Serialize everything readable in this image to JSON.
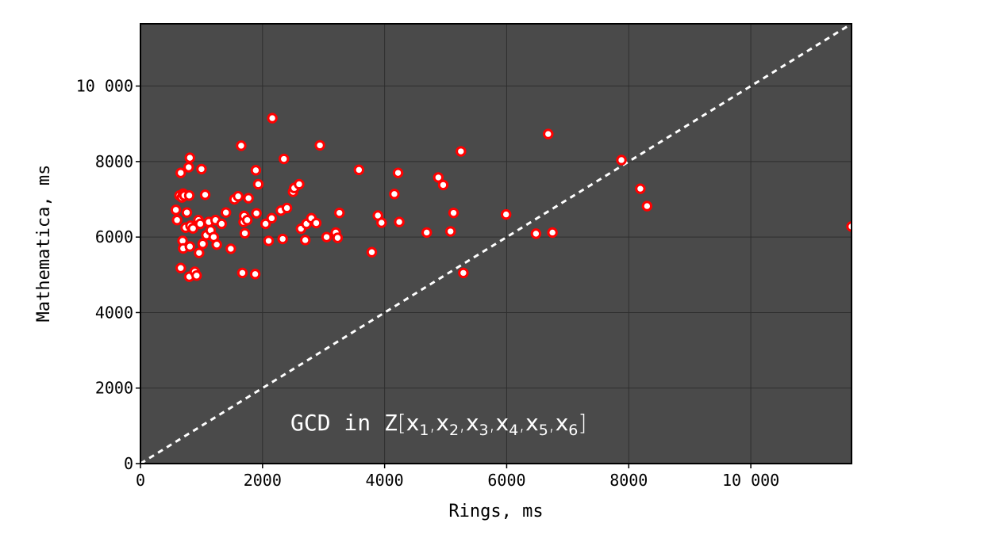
{
  "chart_data": {
    "type": "scatter",
    "xlabel": "Rings, ms",
    "ylabel": "Mathematica, ms",
    "annotation": {
      "prefix": "GCD in Z",
      "open": "[",
      "close": "]",
      "variables": [
        {
          "base": "x",
          "sub": "1"
        },
        {
          "base": "x",
          "sub": "2"
        },
        {
          "base": "x",
          "sub": "3"
        },
        {
          "base": "x",
          "sub": "4"
        },
        {
          "base": "x",
          "sub": "5"
        },
        {
          "base": "x",
          "sub": "6"
        }
      ],
      "separator": ","
    },
    "xlim": [
      0,
      11650
    ],
    "ylim": [
      0,
      11650
    ],
    "xticks": [
      {
        "value": 0,
        "label": "0"
      },
      {
        "value": 2000,
        "label": "2000"
      },
      {
        "value": 4000,
        "label": "4000"
      },
      {
        "value": 6000,
        "label": "6000"
      },
      {
        "value": 8000,
        "label": "8000"
      },
      {
        "value": 10000,
        "label": "10 000"
      }
    ],
    "yticks": [
      {
        "value": 0,
        "label": "0"
      },
      {
        "value": 2000,
        "label": "2000"
      },
      {
        "value": 4000,
        "label": "4000"
      },
      {
        "value": 6000,
        "label": "6000"
      },
      {
        "value": 8000,
        "label": "8000"
      },
      {
        "value": 10000,
        "label": "10 000"
      }
    ],
    "grid": true,
    "reference_line": "y = x",
    "colors": {
      "plot_background": "#4a4a4a",
      "grid": "#2e2e2e",
      "marker_edge": "#ff0000",
      "marker_face": "#ffffff",
      "reference_line": "#ffffff"
    },
    "points": [
      [
        580,
        6720
      ],
      [
        600,
        6450
      ],
      [
        640,
        7100
      ],
      [
        660,
        7700
      ],
      [
        680,
        7050
      ],
      [
        700,
        7150
      ],
      [
        720,
        7100
      ],
      [
        690,
        5900
      ],
      [
        700,
        5700
      ],
      [
        660,
        5180
      ],
      [
        740,
        6250
      ],
      [
        760,
        6650
      ],
      [
        790,
        7850
      ],
      [
        810,
        8100
      ],
      [
        800,
        7100
      ],
      [
        820,
        6300
      ],
      [
        810,
        5750
      ],
      [
        800,
        4950
      ],
      [
        860,
        6230
      ],
      [
        890,
        5080
      ],
      [
        920,
        4980
      ],
      [
        950,
        6450
      ],
      [
        960,
        5580
      ],
      [
        980,
        6350
      ],
      [
        1000,
        7800
      ],
      [
        1020,
        5820
      ],
      [
        1060,
        7120
      ],
      [
        1080,
        6050
      ],
      [
        1120,
        6400
      ],
      [
        1150,
        6180
      ],
      [
        1200,
        6000
      ],
      [
        1230,
        6450
      ],
      [
        1250,
        5800
      ],
      [
        1330,
        6350
      ],
      [
        1400,
        6650
      ],
      [
        1480,
        5690
      ],
      [
        1540,
        7000
      ],
      [
        1600,
        7080
      ],
      [
        1650,
        8420
      ],
      [
        1670,
        5050
      ],
      [
        1690,
        6400
      ],
      [
        1700,
        6560
      ],
      [
        1710,
        6100
      ],
      [
        1750,
        6450
      ],
      [
        1770,
        7030
      ],
      [
        1880,
        5020
      ],
      [
        1890,
        7770
      ],
      [
        1900,
        6630
      ],
      [
        1930,
        7400
      ],
      [
        2050,
        6350
      ],
      [
        2100,
        5900
      ],
      [
        2150,
        6500
      ],
      [
        2160,
        9150
      ],
      [
        2300,
        6700
      ],
      [
        2330,
        5950
      ],
      [
        2350,
        8070
      ],
      [
        2400,
        6770
      ],
      [
        2500,
        7200
      ],
      [
        2520,
        7300
      ],
      [
        2600,
        7400
      ],
      [
        2630,
        6220
      ],
      [
        2700,
        5920
      ],
      [
        2720,
        6350
      ],
      [
        2800,
        6500
      ],
      [
        2880,
        6370
      ],
      [
        2940,
        8430
      ],
      [
        3050,
        6000
      ],
      [
        3200,
        6120
      ],
      [
        3230,
        5980
      ],
      [
        3260,
        6640
      ],
      [
        3580,
        7780
      ],
      [
        3790,
        5600
      ],
      [
        3890,
        6570
      ],
      [
        3950,
        6380
      ],
      [
        4160,
        7140
      ],
      [
        4220,
        7700
      ],
      [
        4240,
        6400
      ],
      [
        4690,
        6120
      ],
      [
        4880,
        7580
      ],
      [
        4960,
        7380
      ],
      [
        5080,
        6150
      ],
      [
        5130,
        6640
      ],
      [
        5250,
        8270
      ],
      [
        5290,
        5050
      ],
      [
        5990,
        6600
      ],
      [
        6480,
        6090
      ],
      [
        6680,
        8730
      ],
      [
        6750,
        6120
      ],
      [
        7880,
        8040
      ],
      [
        8190,
        7280
      ],
      [
        8300,
        6820
      ],
      [
        11650,
        6280
      ]
    ]
  }
}
